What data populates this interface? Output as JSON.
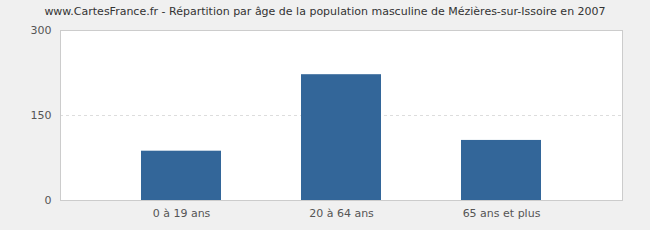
{
  "chart_data": {
    "type": "bar",
    "title": "www.CartesFrance.fr - Répartition par âge de la population masculine de Mézières-sur-Issoire en 2007",
    "categories": [
      "0 à 19 ans",
      "20 à 64 ans",
      "65 ans et plus"
    ],
    "values": [
      87,
      222,
      106
    ],
    "color": "#336699",
    "ylim": [
      0,
      300
    ],
    "yticks": [
      0,
      150,
      300
    ],
    "grid": true
  }
}
